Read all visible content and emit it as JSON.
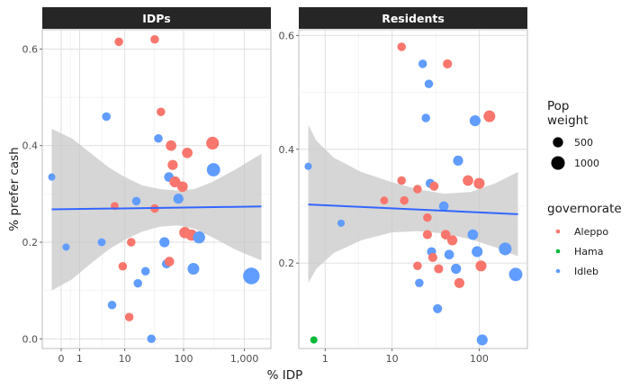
{
  "colors": {
    "Aleppo": "#f8766d",
    "Hama": "#00ba38",
    "Idleb": "#619cff",
    "strip": "#262626",
    "trend": "#3366ff",
    "ribbon": "#c8c8c8"
  },
  "chart_data": {
    "type": "scatter",
    "xlabel": "% IDP",
    "ylabel": "% prefer cash",
    "x_scale": "log10(x+1)",
    "grid": true,
    "legend_position": "right",
    "panels": [
      {
        "name": "IDPs",
        "xlim": [
          -0.3,
          1900
        ],
        "ylim": [
          -0.02,
          0.64
        ],
        "x_ticks": [
          {
            "value": 0,
            "label": "0"
          },
          {
            "value": 1,
            "label": "1"
          },
          {
            "value": 10,
            "label": "10"
          },
          {
            "value": 100,
            "label": "100"
          },
          {
            "value": 1000,
            "label": "1,000"
          }
        ],
        "y_ticks": [
          {
            "value": 0.0,
            "label": "0.0"
          },
          {
            "value": 0.2,
            "label": "0.2"
          },
          {
            "value": 0.4,
            "label": "0.4"
          },
          {
            "value": 0.6,
            "label": "0.6"
          }
        ],
        "points": [
          {
            "x": -0.3,
            "y": 0.335,
            "group": "Idleb",
            "weight": 150
          },
          {
            "x": 0.2,
            "y": 0.19,
            "group": "Idleb",
            "weight": 150
          },
          {
            "x": 3.6,
            "y": 0.2,
            "group": "Idleb",
            "weight": 200
          },
          {
            "x": 4.5,
            "y": 0.46,
            "group": "Idleb",
            "weight": 250
          },
          {
            "x": 5.8,
            "y": 0.07,
            "group": "Idleb",
            "weight": 250
          },
          {
            "x": 6.5,
            "y": 0.275,
            "group": "Aleppo",
            "weight": 200
          },
          {
            "x": 7.8,
            "y": 0.615,
            "group": "Aleppo",
            "weight": 250
          },
          {
            "x": 9.2,
            "y": 0.15,
            "group": "Aleppo",
            "weight": 250
          },
          {
            "x": 12,
            "y": 0.045,
            "group": "Aleppo",
            "weight": 250
          },
          {
            "x": 13,
            "y": 0.2,
            "group": "Aleppo",
            "weight": 250
          },
          {
            "x": 16,
            "y": 0.285,
            "group": "Idleb",
            "weight": 250
          },
          {
            "x": 17,
            "y": 0.115,
            "group": "Idleb",
            "weight": 250
          },
          {
            "x": 23,
            "y": 0.14,
            "group": "Idleb",
            "weight": 250
          },
          {
            "x": 29,
            "y": 0.0,
            "group": "Idleb",
            "weight": 250
          },
          {
            "x": 33,
            "y": 0.62,
            "group": "Aleppo",
            "weight": 250
          },
          {
            "x": 33,
            "y": 0.27,
            "group": "Aleppo",
            "weight": 250
          },
          {
            "x": 38,
            "y": 0.415,
            "group": "Idleb",
            "weight": 250
          },
          {
            "x": 42,
            "y": 0.47,
            "group": "Aleppo",
            "weight": 250
          },
          {
            "x": 48,
            "y": 0.2,
            "group": "Idleb",
            "weight": 400
          },
          {
            "x": 52,
            "y": 0.155,
            "group": "Idleb",
            "weight": 300
          },
          {
            "x": 57,
            "y": 0.335,
            "group": "Idleb",
            "weight": 350
          },
          {
            "x": 58,
            "y": 0.16,
            "group": "Aleppo",
            "weight": 350
          },
          {
            "x": 62,
            "y": 0.4,
            "group": "Aleppo",
            "weight": 450
          },
          {
            "x": 66,
            "y": 0.36,
            "group": "Aleppo",
            "weight": 400
          },
          {
            "x": 72,
            "y": 0.325,
            "group": "Aleppo",
            "weight": 500
          },
          {
            "x": 82,
            "y": 0.29,
            "group": "Idleb",
            "weight": 400
          },
          {
            "x": 96,
            "y": 0.315,
            "group": "Aleppo",
            "weight": 450
          },
          {
            "x": 105,
            "y": 0.22,
            "group": "Aleppo",
            "weight": 550
          },
          {
            "x": 115,
            "y": 0.385,
            "group": "Aleppo",
            "weight": 450
          },
          {
            "x": 135,
            "y": 0.215,
            "group": "Aleppo",
            "weight": 550
          },
          {
            "x": 145,
            "y": 0.145,
            "group": "Idleb",
            "weight": 600
          },
          {
            "x": 180,
            "y": 0.21,
            "group": "Idleb",
            "weight": 650
          },
          {
            "x": 300,
            "y": 0.405,
            "group": "Aleppo",
            "weight": 750
          },
          {
            "x": 310,
            "y": 0.35,
            "group": "Idleb",
            "weight": 850
          },
          {
            "x": 1300,
            "y": 0.13,
            "group": "Idleb",
            "weight": 1450
          }
        ],
        "trend": {
          "x": [
            -0.3,
            1900
          ],
          "y": [
            0.268,
            0.274
          ]
        },
        "ribbon": {
          "x": [
            -0.3,
            0.5,
            2,
            5,
            10,
            20,
            40,
            80,
            150,
            300,
            700,
            1900
          ],
          "upper": [
            0.435,
            0.415,
            0.385,
            0.355,
            0.335,
            0.318,
            0.31,
            0.307,
            0.31,
            0.325,
            0.35,
            0.383
          ],
          "lower": [
            0.1,
            0.123,
            0.155,
            0.185,
            0.205,
            0.222,
            0.232,
            0.235,
            0.228,
            0.21,
            0.185,
            0.162
          ]
        }
      },
      {
        "name": "Residents",
        "xlim": [
          0.3,
          270
        ],
        "ylim": [
          0.05,
          0.61
        ],
        "x_ticks": [
          {
            "value": 1,
            "label": "1"
          },
          {
            "value": 10,
            "label": "10"
          },
          {
            "value": 100,
            "label": "100"
          }
        ],
        "y_ticks": [
          {
            "value": 0.2,
            "label": "0.2"
          },
          {
            "value": 0.4,
            "label": "0.4"
          },
          {
            "value": 0.6,
            "label": "0.6"
          }
        ],
        "points": [
          {
            "x": 0.3,
            "y": 0.37,
            "group": "Idleb",
            "weight": 150
          },
          {
            "x": 0.5,
            "y": 0.065,
            "group": "Hama",
            "weight": 150
          },
          {
            "x": 2,
            "y": 0.27,
            "group": "Idleb",
            "weight": 150
          },
          {
            "x": 8,
            "y": 0.31,
            "group": "Aleppo",
            "weight": 200
          },
          {
            "x": 13,
            "y": 0.58,
            "group": "Aleppo",
            "weight": 250
          },
          {
            "x": 13,
            "y": 0.345,
            "group": "Aleppo",
            "weight": 250
          },
          {
            "x": 14,
            "y": 0.31,
            "group": "Aleppo",
            "weight": 250
          },
          {
            "x": 20,
            "y": 0.33,
            "group": "Aleppo",
            "weight": 250
          },
          {
            "x": 20,
            "y": 0.195,
            "group": "Aleppo",
            "weight": 250
          },
          {
            "x": 21,
            "y": 0.165,
            "group": "Idleb",
            "weight": 250
          },
          {
            "x": 23,
            "y": 0.55,
            "group": "Idleb",
            "weight": 250
          },
          {
            "x": 25,
            "y": 0.455,
            "group": "Idleb",
            "weight": 250
          },
          {
            "x": 26,
            "y": 0.25,
            "group": "Aleppo",
            "weight": 300
          },
          {
            "x": 26,
            "y": 0.28,
            "group": "Aleppo",
            "weight": 250
          },
          {
            "x": 27,
            "y": 0.515,
            "group": "Idleb",
            "weight": 250
          },
          {
            "x": 28,
            "y": 0.34,
            "group": "Idleb",
            "weight": 300
          },
          {
            "x": 29,
            "y": 0.22,
            "group": "Idleb",
            "weight": 300
          },
          {
            "x": 30,
            "y": 0.21,
            "group": "Aleppo",
            "weight": 300
          },
          {
            "x": 31,
            "y": 0.335,
            "group": "Aleppo",
            "weight": 300
          },
          {
            "x": 34,
            "y": 0.12,
            "group": "Idleb",
            "weight": 300
          },
          {
            "x": 35,
            "y": 0.19,
            "group": "Aleppo",
            "weight": 300
          },
          {
            "x": 40,
            "y": 0.3,
            "group": "Idleb",
            "weight": 350
          },
          {
            "x": 42,
            "y": 0.25,
            "group": "Aleppo",
            "weight": 350
          },
          {
            "x": 44,
            "y": 0.55,
            "group": "Aleppo",
            "weight": 300
          },
          {
            "x": 46,
            "y": 0.215,
            "group": "Idleb",
            "weight": 350
          },
          {
            "x": 50,
            "y": 0.24,
            "group": "Aleppo",
            "weight": 400
          },
          {
            "x": 55,
            "y": 0.19,
            "group": "Idleb",
            "weight": 400
          },
          {
            "x": 58,
            "y": 0.38,
            "group": "Idleb",
            "weight": 400
          },
          {
            "x": 60,
            "y": 0.165,
            "group": "Aleppo",
            "weight": 400
          },
          {
            "x": 75,
            "y": 0.345,
            "group": "Aleppo",
            "weight": 450
          },
          {
            "x": 85,
            "y": 0.25,
            "group": "Idleb",
            "weight": 450
          },
          {
            "x": 90,
            "y": 0.45,
            "group": "Idleb",
            "weight": 500
          },
          {
            "x": 95,
            "y": 0.22,
            "group": "Idleb",
            "weight": 500
          },
          {
            "x": 100,
            "y": 0.34,
            "group": "Aleppo",
            "weight": 500
          },
          {
            "x": 105,
            "y": 0.195,
            "group": "Aleppo",
            "weight": 500
          },
          {
            "x": 108,
            "y": 0.065,
            "group": "Idleb",
            "weight": 500
          },
          {
            "x": 130,
            "y": 0.458,
            "group": "Aleppo",
            "weight": 600
          },
          {
            "x": 195,
            "y": 0.225,
            "group": "Idleb",
            "weight": 750
          },
          {
            "x": 255,
            "y": 0.18,
            "group": "Idleb",
            "weight": 850
          }
        ],
        "trend": {
          "x": [
            0.3,
            270
          ],
          "y": [
            0.303,
            0.286
          ]
        },
        "ribbon": {
          "x": [
            0.3,
            0.6,
            1.5,
            4,
            10,
            20,
            40,
            80,
            150,
            270
          ],
          "upper": [
            0.443,
            0.415,
            0.385,
            0.36,
            0.342,
            0.33,
            0.322,
            0.325,
            0.34,
            0.36
          ],
          "lower": [
            0.165,
            0.19,
            0.218,
            0.24,
            0.254,
            0.256,
            0.252,
            0.242,
            0.228,
            0.212
          ]
        }
      }
    ],
    "legend_size": {
      "title": "Pop\nweight",
      "entries": [
        {
          "label": "500",
          "weight": 500
        },
        {
          "label": "1000",
          "weight": 1000
        }
      ]
    },
    "legend_color": {
      "title": "governorate",
      "entries": [
        "Aleppo",
        "Hama",
        "Idleb"
      ]
    }
  }
}
